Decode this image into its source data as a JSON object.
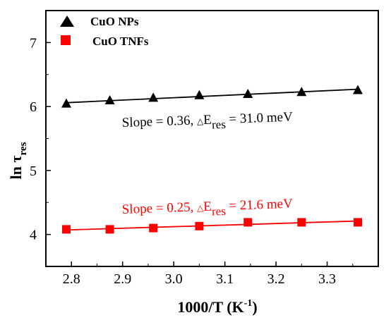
{
  "chart_data": {
    "type": "scatter",
    "xlabel": {
      "main": "1000/T (K",
      "sup": "-1",
      "tail": ")"
    },
    "ylabel": {
      "main": "ln τ",
      "sub": "res"
    },
    "xlim": [
      2.75,
      3.4
    ],
    "ylim": [
      3.5,
      7.5
    ],
    "xticks": [
      2.8,
      2.9,
      3.0,
      3.1,
      3.2,
      3.3
    ],
    "xtick_labels": [
      "2.8",
      "2.9",
      "3.0",
      "3.1",
      "3.2",
      "3.3"
    ],
    "yticks": [
      4,
      5,
      6,
      7
    ],
    "ytick_labels": [
      "4",
      "5",
      "6",
      "7"
    ],
    "legend_position": "top-left",
    "series": [
      {
        "name": "CuO NPs",
        "marker": "triangle",
        "color": "#000000",
        "x": [
          2.79,
          2.875,
          2.96,
          3.05,
          3.145,
          3.25,
          3.36
        ],
        "y": [
          6.05,
          6.1,
          6.14,
          6.18,
          6.2,
          6.23,
          6.26
        ],
        "fit": {
          "x": [
            2.79,
            3.36
          ],
          "y": [
            6.06,
            6.27
          ]
        },
        "annotation": {
          "prefix": "Slope = 0.36,  ",
          "delta": "△",
          "E": "E",
          "sub": "res",
          "suffix": " = 31.0 meV"
        }
      },
      {
        "name": "CuO TNFs",
        "marker": "square",
        "color": "#ff0000",
        "x": [
          2.79,
          2.875,
          2.96,
          3.05,
          3.145,
          3.25,
          3.36
        ],
        "y": [
          4.08,
          4.08,
          4.1,
          4.13,
          4.19,
          4.19,
          4.19
        ],
        "fit": {
          "x": [
            2.79,
            3.36
          ],
          "y": [
            4.07,
            4.21
          ]
        },
        "annotation": {
          "prefix": "Slope = 0.25,  ",
          "delta": "△",
          "E": "E",
          "sub": "res",
          "suffix": " = 21.6 meV"
        }
      }
    ]
  }
}
